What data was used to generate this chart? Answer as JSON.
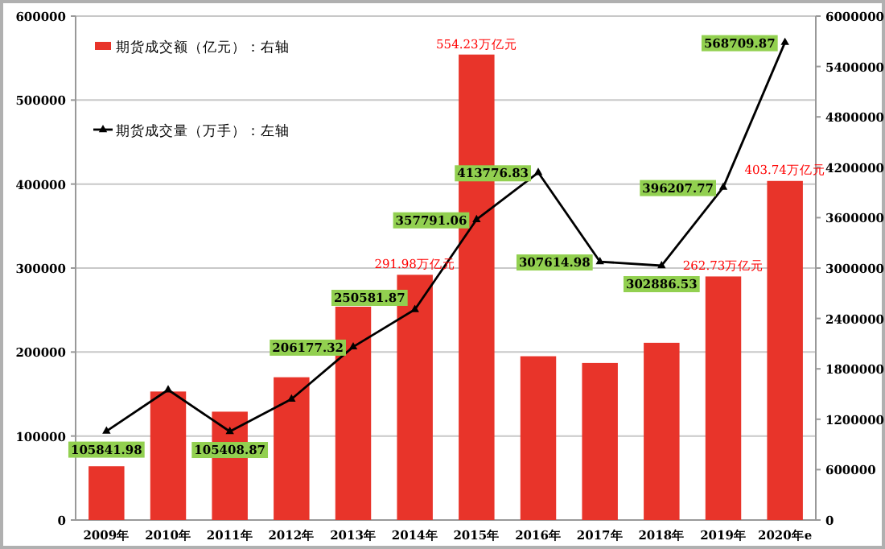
{
  "chart_data": {
    "type": "bar",
    "categories": [
      "2009年",
      "2010年",
      "2011年",
      "2012年",
      "2013年",
      "2014年",
      "2015年",
      "2016年",
      "2017年",
      "2018年",
      "2019年",
      "2020年e"
    ],
    "series": [
      {
        "name": "期货成交额（亿元）：右轴",
        "axis": "y2",
        "color": "#e8342a",
        "values": [
          640000,
          1530000,
          1290000,
          1700000,
          2540000,
          2919800,
          5542300,
          1950000,
          1870000,
          2110000,
          2900000,
          4037400
        ]
      },
      {
        "name": "期货成交量（万手）：左轴",
        "type": "line",
        "color": "#000000",
        "marker": "triangle",
        "values": [
          105841.98,
          155000,
          105408.87,
          144000,
          206177.32,
          250581.87,
          357791.06,
          413776.83,
          307614.98,
          302886.53,
          396207.77,
          568709.87
        ],
        "value_labels": [
          "105841.98",
          null,
          "105408.87",
          null,
          "206177.32",
          "250581.87",
          "357791.06",
          "413776.83",
          "307614.98",
          "302886.53",
          "396207.77",
          "568709.87"
        ]
      }
    ],
    "annotations": [
      {
        "text": "291.98万亿元",
        "x": "2014年",
        "y": 292000
      },
      {
        "text": "554.23万亿元",
        "x": "2015年",
        "y": 554000
      },
      {
        "text": "262.73万亿元",
        "x": "2019年",
        "y": 290000
      },
      {
        "text": "403.74万亿元",
        "x": "2020年e",
        "y": 404000
      }
    ],
    "ylim": [
      0,
      600000
    ],
    "yticks": [
      0,
      100000,
      200000,
      300000,
      400000,
      500000,
      600000
    ],
    "y2lim": [
      0,
      6000000
    ],
    "y2ticks": [
      0,
      600000,
      1200000,
      1800000,
      2400000,
      3000000,
      3600000,
      4200000,
      4800000,
      5400000,
      6000000
    ],
    "grid": "y",
    "legend": "top left"
  }
}
